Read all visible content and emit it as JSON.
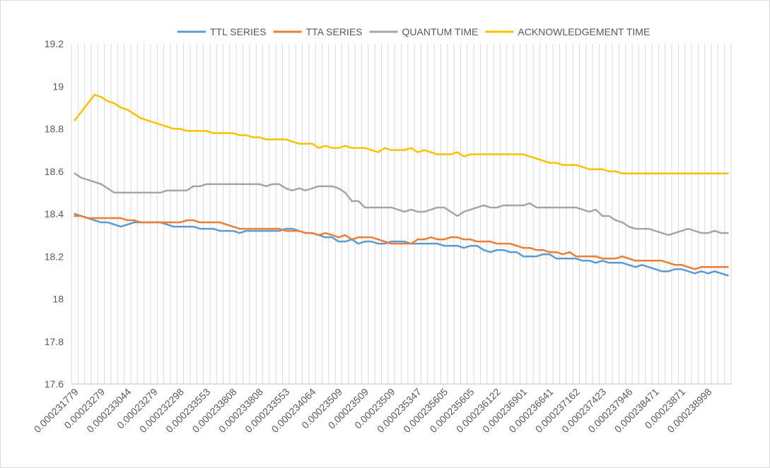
{
  "chart_data": {
    "type": "line",
    "ylim": [
      17.6,
      19.2
    ],
    "y_ticks": [
      "17.6",
      "17.8",
      "18",
      "18.2",
      "18.4",
      "18.6",
      "18.8",
      "19",
      "19.2"
    ],
    "grid": "vertical gridlines on every category",
    "legend_position": "top",
    "x_tick_labels": [
      "0.000231779",
      "0.00023279",
      "0.000233044",
      "0.00023279",
      "0.000232298",
      "0.000233553",
      "0.000233808",
      "0.000233808",
      "0.000233553",
      "0.000234064",
      "0.00023509",
      "0.00023509",
      "0.00023509",
      "0.000235347",
      "0.000235605",
      "0.000235605",
      "0.000236122",
      "0.000236901",
      "0.000236641",
      "0.000237162",
      "0.000237423",
      "0.000237946",
      "0.000238471",
      "0.00023871",
      "0.000238998"
    ],
    "series": [
      {
        "name": "TTL SERIES",
        "color": "#5B9BD5",
        "values": [
          18.4,
          18.39,
          18.38,
          18.37,
          18.36,
          18.36,
          18.35,
          18.34,
          18.35,
          18.36,
          18.36,
          18.36,
          18.36,
          18.36,
          18.35,
          18.34,
          18.34,
          18.34,
          18.34,
          18.33,
          18.33,
          18.33,
          18.32,
          18.32,
          18.32,
          18.31,
          18.32,
          18.32,
          18.32,
          18.32,
          18.32,
          18.32,
          18.33,
          18.33,
          18.32,
          18.31,
          18.31,
          18.3,
          18.29,
          18.29,
          18.27,
          18.27,
          18.28,
          18.26,
          18.27,
          18.27,
          18.26,
          18.26,
          18.27,
          18.27,
          18.27,
          18.26,
          18.26,
          18.26,
          18.26,
          18.26,
          18.25,
          18.25,
          18.25,
          18.24,
          18.25,
          18.25,
          18.23,
          18.22,
          18.23,
          18.23,
          18.22,
          18.22,
          18.2,
          18.2,
          18.2,
          18.21,
          18.21,
          18.19,
          18.19,
          18.19,
          18.19,
          18.18,
          18.18,
          18.17,
          18.18,
          18.17,
          18.17,
          18.17,
          18.16,
          18.15,
          18.16,
          18.15,
          18.14,
          18.13,
          18.13,
          18.14,
          18.14,
          18.13,
          18.12,
          18.13,
          18.12,
          18.13,
          18.12,
          18.11
        ]
      },
      {
        "name": "TTA SERIES",
        "color": "#ED7D31",
        "values": [
          18.39,
          18.39,
          18.38,
          18.38,
          18.38,
          18.38,
          18.38,
          18.38,
          18.37,
          18.37,
          18.36,
          18.36,
          18.36,
          18.36,
          18.36,
          18.36,
          18.36,
          18.37,
          18.37,
          18.36,
          18.36,
          18.36,
          18.36,
          18.35,
          18.34,
          18.33,
          18.33,
          18.33,
          18.33,
          18.33,
          18.33,
          18.33,
          18.32,
          18.32,
          18.32,
          18.31,
          18.31,
          18.3,
          18.31,
          18.3,
          18.29,
          18.3,
          18.28,
          18.29,
          18.29,
          18.29,
          18.28,
          18.27,
          18.26,
          18.26,
          18.26,
          18.26,
          18.28,
          18.28,
          18.29,
          18.28,
          18.28,
          18.29,
          18.29,
          18.28,
          18.28,
          18.27,
          18.27,
          18.27,
          18.26,
          18.26,
          18.26,
          18.25,
          18.24,
          18.24,
          18.23,
          18.23,
          18.22,
          18.22,
          18.21,
          18.22,
          18.2,
          18.2,
          18.2,
          18.2,
          18.19,
          18.19,
          18.19,
          18.2,
          18.19,
          18.18,
          18.18,
          18.18,
          18.18,
          18.18,
          18.17,
          18.16,
          18.16,
          18.15,
          18.14,
          18.15,
          18.15,
          18.15,
          18.15,
          18.15
        ]
      },
      {
        "name": "QUANTUM TIME",
        "color": "#A5A5A5",
        "values": [
          18.59,
          18.57,
          18.56,
          18.55,
          18.54,
          18.52,
          18.5,
          18.5,
          18.5,
          18.5,
          18.5,
          18.5,
          18.5,
          18.5,
          18.51,
          18.51,
          18.51,
          18.51,
          18.53,
          18.53,
          18.54,
          18.54,
          18.54,
          18.54,
          18.54,
          18.54,
          18.54,
          18.54,
          18.54,
          18.53,
          18.54,
          18.54,
          18.52,
          18.51,
          18.52,
          18.51,
          18.52,
          18.53,
          18.53,
          18.53,
          18.52,
          18.5,
          18.46,
          18.46,
          18.43,
          18.43,
          18.43,
          18.43,
          18.43,
          18.42,
          18.41,
          18.42,
          18.41,
          18.41,
          18.42,
          18.43,
          18.43,
          18.41,
          18.39,
          18.41,
          18.42,
          18.43,
          18.44,
          18.43,
          18.43,
          18.44,
          18.44,
          18.44,
          18.44,
          18.45,
          18.43,
          18.43,
          18.43,
          18.43,
          18.43,
          18.43,
          18.43,
          18.42,
          18.41,
          18.42,
          18.39,
          18.39,
          18.37,
          18.36,
          18.34,
          18.33,
          18.33,
          18.33,
          18.32,
          18.31,
          18.3,
          18.31,
          18.32,
          18.33,
          18.32,
          18.31,
          18.31,
          18.32,
          18.31,
          18.31
        ]
      },
      {
        "name": "ACKNOWLEDGEMENT TIME",
        "color": "#FFC000",
        "values": [
          18.84,
          18.88,
          18.92,
          18.96,
          18.95,
          18.93,
          18.92,
          18.9,
          18.89,
          18.87,
          18.85,
          18.84,
          18.83,
          18.82,
          18.81,
          18.8,
          18.8,
          18.79,
          18.79,
          18.79,
          18.79,
          18.78,
          18.78,
          18.78,
          18.78,
          18.77,
          18.77,
          18.76,
          18.76,
          18.75,
          18.75,
          18.75,
          18.75,
          18.74,
          18.73,
          18.73,
          18.73,
          18.71,
          18.72,
          18.71,
          18.71,
          18.72,
          18.71,
          18.71,
          18.71,
          18.7,
          18.69,
          18.71,
          18.7,
          18.7,
          18.7,
          18.71,
          18.69,
          18.7,
          18.69,
          18.68,
          18.68,
          18.68,
          18.69,
          18.67,
          18.68,
          18.68,
          18.68,
          18.68,
          18.68,
          18.68,
          18.68,
          18.68,
          18.68,
          18.67,
          18.66,
          18.65,
          18.64,
          18.64,
          18.63,
          18.63,
          18.63,
          18.62,
          18.61,
          18.61,
          18.61,
          18.6,
          18.6,
          18.59,
          18.59,
          18.59,
          18.59,
          18.59,
          18.59,
          18.59,
          18.59,
          18.59,
          18.59,
          18.59,
          18.59,
          18.59,
          18.59,
          18.59,
          18.59,
          18.59
        ]
      }
    ]
  }
}
